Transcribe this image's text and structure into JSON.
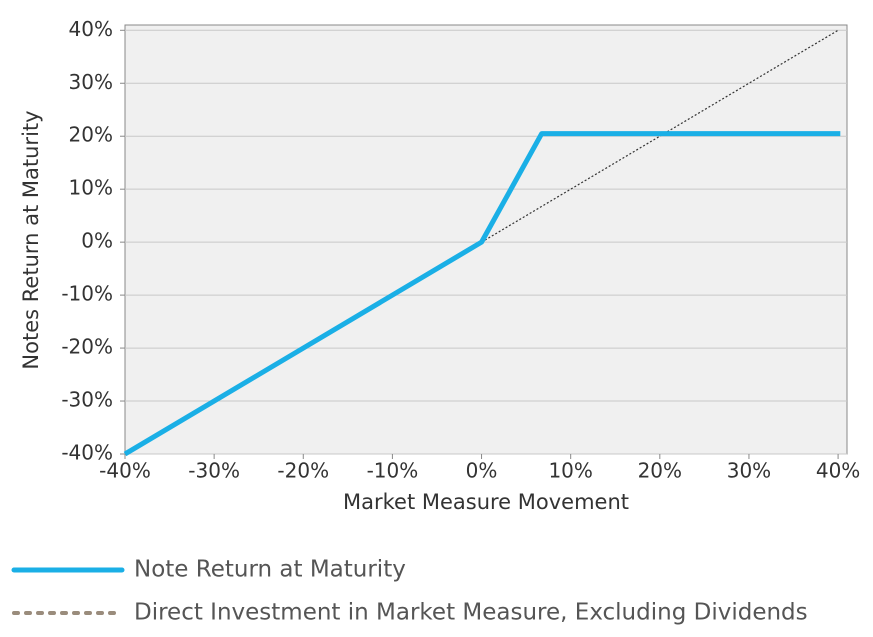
{
  "chart_data": {
    "type": "line",
    "x_label": "Market Measure Movement",
    "y_label": "Notes Return at Maturity",
    "xlim": [
      -40,
      41
    ],
    "ylim": [
      -40,
      41
    ],
    "xticks": [
      {
        "value": -40,
        "label": "-40%"
      },
      {
        "value": -30,
        "label": "-30%"
      },
      {
        "value": -20,
        "label": "-20%"
      },
      {
        "value": -10,
        "label": "-10%"
      },
      {
        "value": 0,
        "label": "0%"
      },
      {
        "value": 10,
        "label": "10%"
      },
      {
        "value": 20,
        "label": "20%"
      },
      {
        "value": 30,
        "label": "30%"
      },
      {
        "value": 40,
        "label": "40%"
      }
    ],
    "yticks": [
      {
        "value": -40,
        "label": "-40%"
      },
      {
        "value": -30,
        "label": "-30%"
      },
      {
        "value": -20,
        "label": "-20%"
      },
      {
        "value": -10,
        "label": "-10%"
      },
      {
        "value": 0,
        "label": "0%"
      },
      {
        "value": 10,
        "label": "10%"
      },
      {
        "value": 20,
        "label": "20%"
      },
      {
        "value": 30,
        "label": "30%"
      },
      {
        "value": 40,
        "label": "40%"
      }
    ],
    "grid": true,
    "series": [
      {
        "name": "Note Return at Maturity",
        "color": "#1aafe6",
        "style": "solid",
        "x": [
          -40,
          0,
          6.75,
          40.25
        ],
        "values": [
          -40,
          0,
          20.5,
          20.5
        ]
      },
      {
        "name": "Direct Investment in Market Measure, Excluding Dividends",
        "color": "#9a8c7c",
        "style": "dotted",
        "x": [
          0,
          40
        ],
        "values": [
          0,
          40
        ]
      }
    ]
  }
}
